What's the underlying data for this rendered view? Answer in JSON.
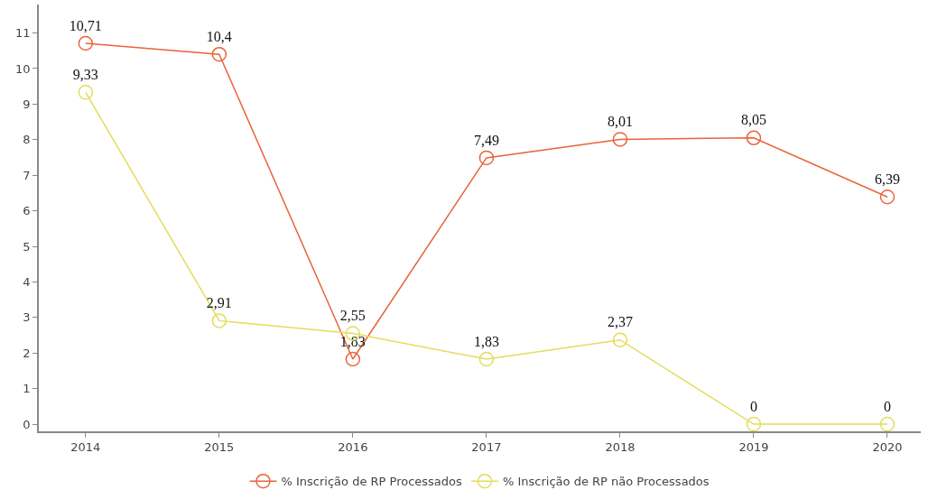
{
  "chart_data": {
    "type": "line",
    "categories": [
      "2014",
      "2015",
      "2016",
      "2017",
      "2018",
      "2019",
      "2020"
    ],
    "ylim": [
      -0.2,
      11.8
    ],
    "yticks": [
      0,
      1,
      2,
      3,
      4,
      5,
      6,
      7,
      8,
      9,
      10,
      11
    ],
    "grid": false,
    "legend": "bottom",
    "marker": "circle",
    "line_style": "solid",
    "series": [
      {
        "name": "% Inscrição de RP Processados",
        "color": "#e8643c",
        "values": [
          10.71,
          10.4,
          1.83,
          7.49,
          8.01,
          8.05,
          6.39
        ],
        "value_labels": [
          "10,71",
          "10,4",
          "1,83",
          "7,49",
          "8,01",
          "8,05",
          "6,39"
        ]
      },
      {
        "name": "% Inscrição de RP não Processados",
        "color": "#e4dc5c",
        "values": [
          9.33,
          2.91,
          2.55,
          1.83,
          2.37,
          0,
          0
        ],
        "value_labels": [
          "9,33",
          "2,91",
          "2,55",
          "1,83",
          "2,37",
          "0",
          "0"
        ]
      }
    ]
  }
}
